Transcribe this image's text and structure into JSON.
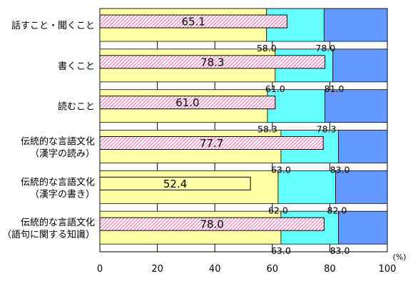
{
  "chart_data": {
    "type": "bar",
    "orientation": "horizontal",
    "categories": [
      [
        "話すこと・聞くこと"
      ],
      [
        "書くこと"
      ],
      [
        "読むこと"
      ],
      [
        "伝統的な言語文化",
        "（漢字の読み）"
      ],
      [
        "伝統的な言語文化",
        "（漢字の書き）"
      ],
      [
        "伝統的な言語文化",
        "（語句に関する知識）"
      ]
    ],
    "values": [
      65.1,
      78.3,
      61.0,
      77.7,
      52.4,
      78.0
    ],
    "value_labels": [
      "65.1",
      "78.3",
      "61.0",
      "77.7",
      "52.4",
      "78.0"
    ],
    "thresholds_low": [
      58.0,
      61.0,
      58.3,
      63.0,
      62.0,
      63.0
    ],
    "thresholds_low_labels": [
      "58.0",
      "61.0",
      "58.3",
      "63.0",
      "62.0",
      "63.0"
    ],
    "thresholds_high": [
      78.0,
      81.0,
      78.3,
      83.0,
      82.0,
      83.0
    ],
    "thresholds_high_labels": [
      "78.0",
      "81.0",
      "78.3",
      "83.0",
      "82.0",
      "83.0"
    ],
    "xlim": [
      0,
      100
    ],
    "xticks": [
      0,
      20,
      40,
      60,
      80,
      100
    ],
    "xunit": "(%)",
    "grid": true,
    "colors": {
      "band_low": "#ffffa8",
      "band_mid": "#66ffff",
      "band_high": "#6699ff",
      "bar_fill": "#ffffff",
      "bar_hatch": "#ff66aa",
      "outline": "#000000"
    }
  }
}
